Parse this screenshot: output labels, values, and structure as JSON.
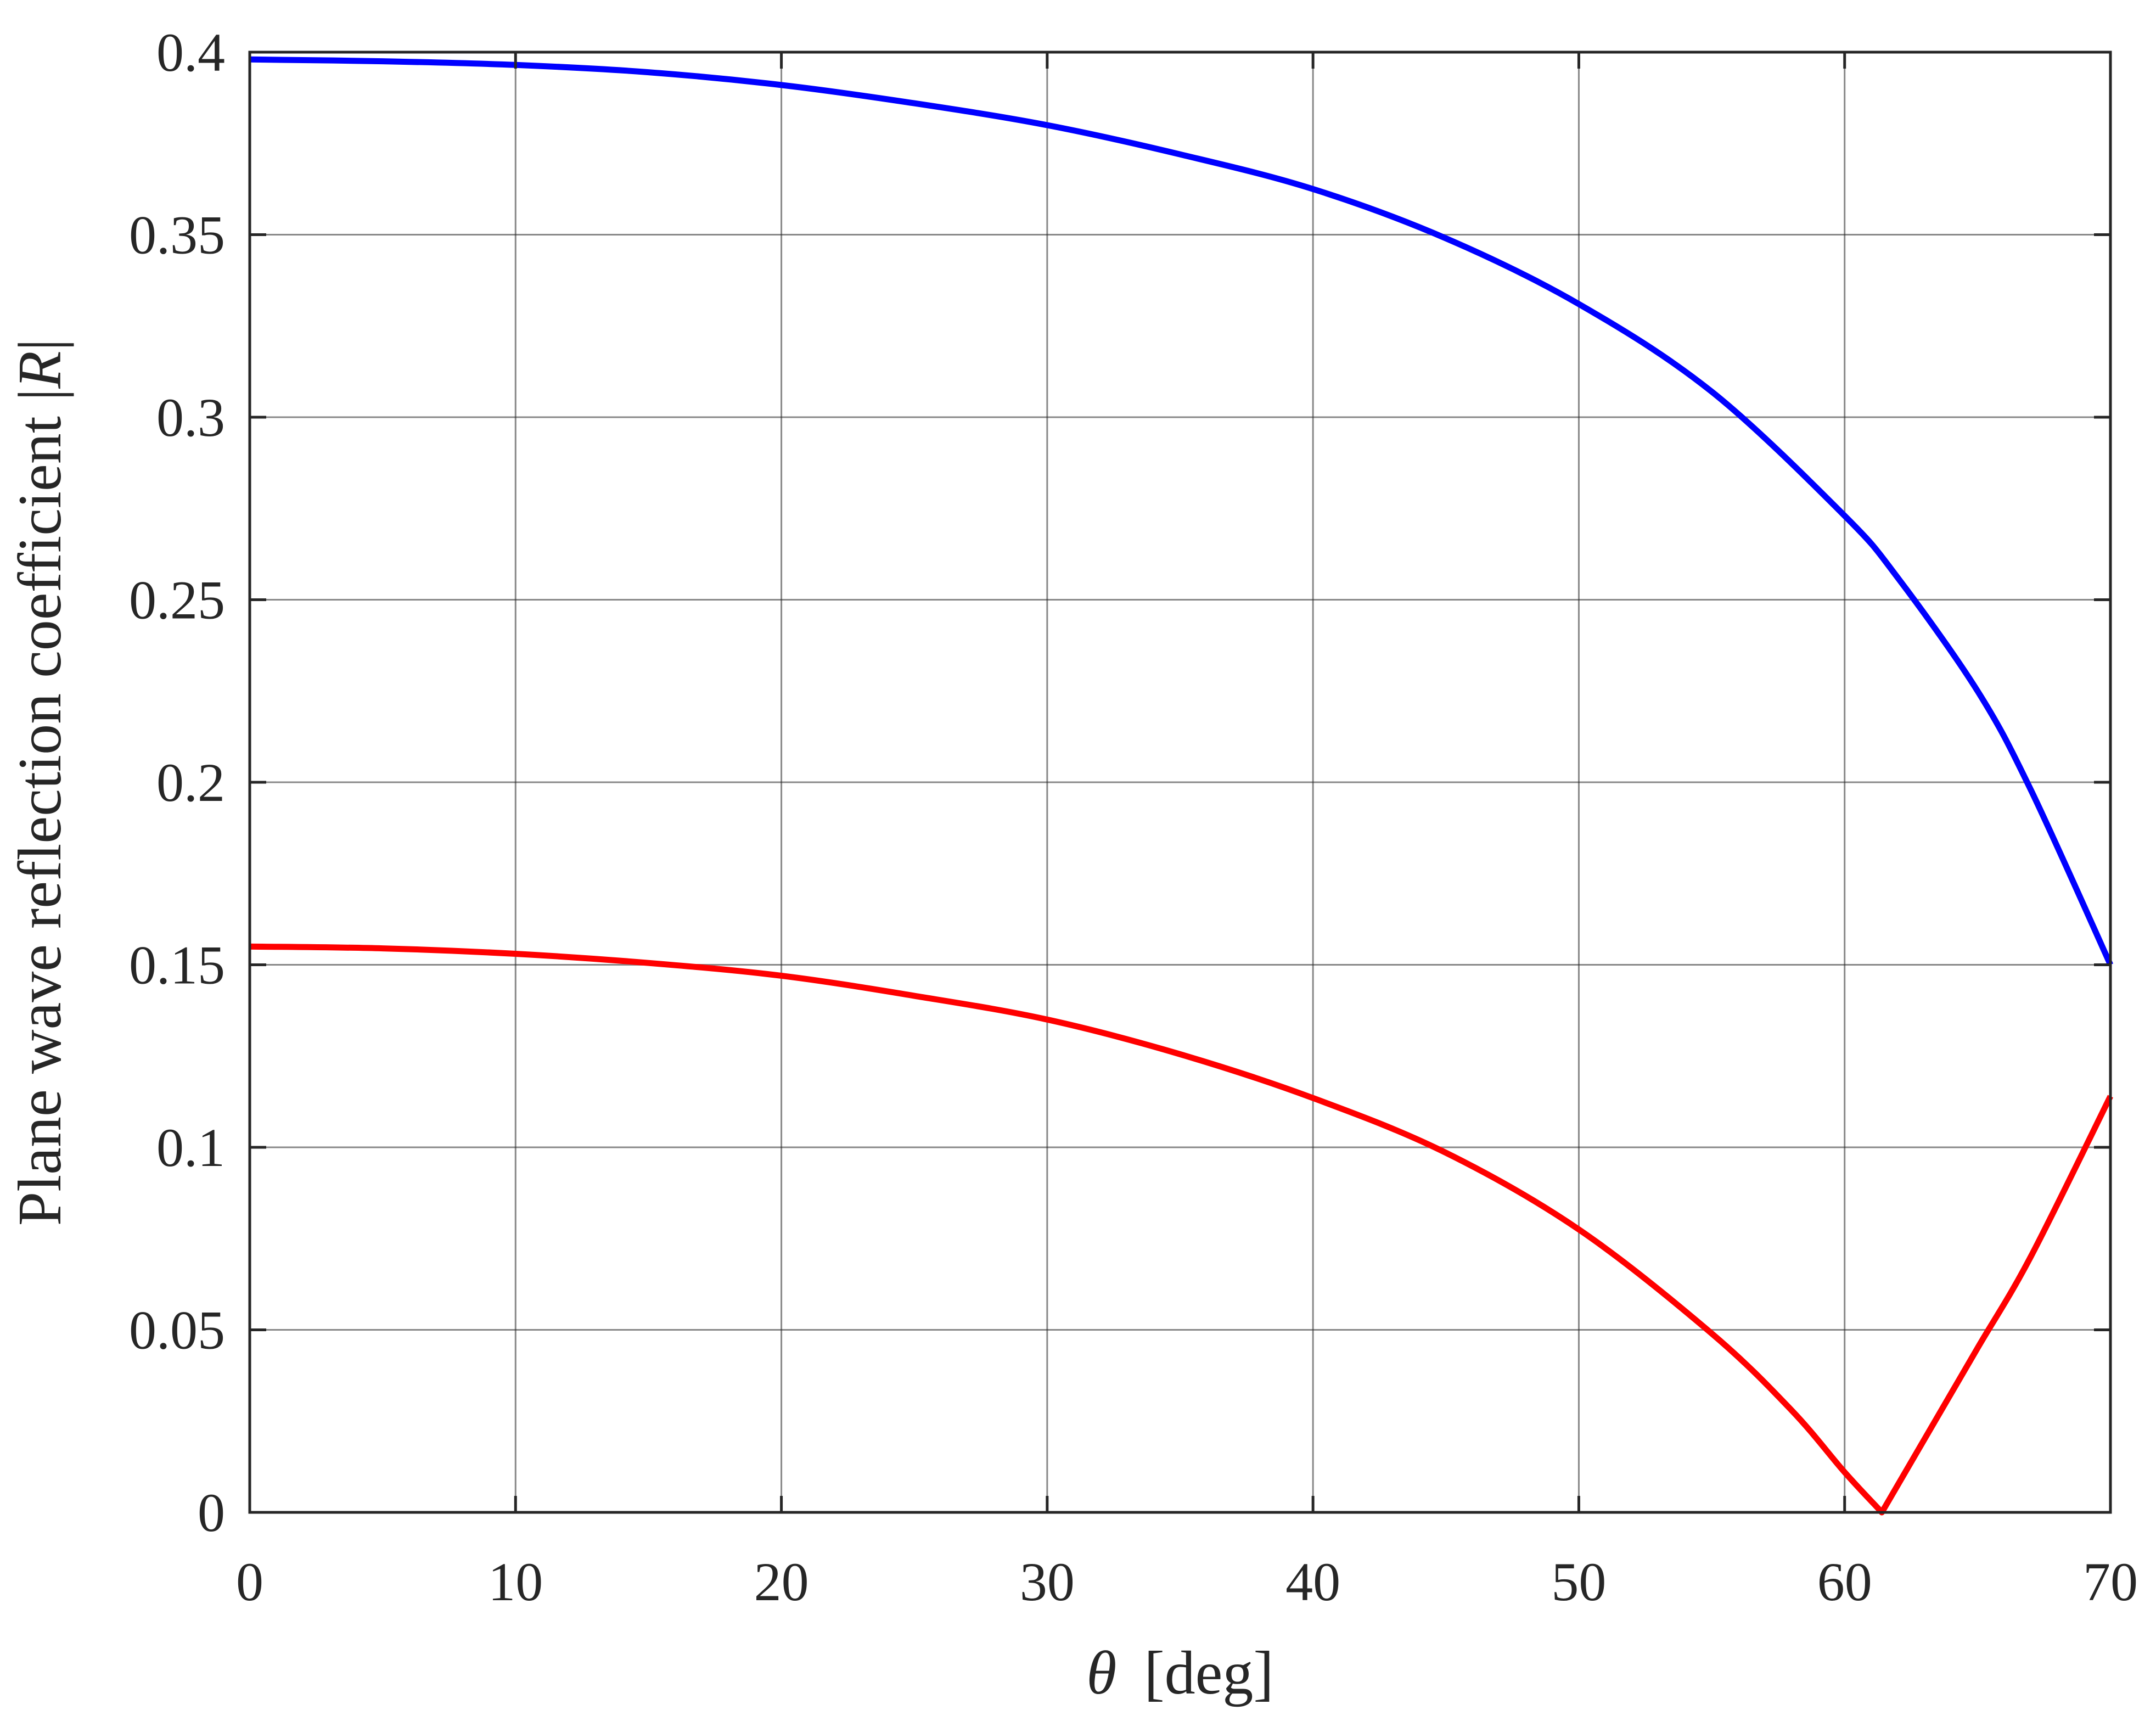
{
  "chart_data": {
    "type": "line",
    "xlabel": {
      "symbol": "θ",
      "unit": "[deg]"
    },
    "ylabel": {
      "text": "Plane wave reflection coefficient |",
      "symbol": "R",
      "close": "|"
    },
    "xlim": [
      0,
      70
    ],
    "ylim": [
      0,
      0.4
    ],
    "xticks": [
      "0",
      "10",
      "20",
      "30",
      "40",
      "50",
      "60",
      "70"
    ],
    "yticks": [
      "0",
      "0.05",
      "0.1",
      "0.15",
      "0.2",
      "0.25",
      "0.3",
      "0.35",
      "0.4"
    ],
    "grid": true,
    "series": [
      {
        "color": "#0000ff",
        "x": [
          0,
          5,
          10,
          15,
          20,
          25,
          30,
          35,
          40,
          45,
          50,
          55,
          60,
          62,
          65,
          67,
          70
        ],
        "y": [
          0.398,
          0.3975,
          0.3965,
          0.3945,
          0.391,
          0.386,
          0.38,
          0.372,
          0.3625,
          0.349,
          0.331,
          0.307,
          0.273,
          0.256,
          0.225,
          0.198,
          0.15
        ]
      },
      {
        "color": "#ff0000",
        "x": [
          0,
          5,
          10,
          15,
          20,
          25,
          30,
          35,
          40,
          45,
          50,
          55,
          58,
          60,
          61.4,
          63,
          65,
          67,
          70
        ],
        "y": [
          0.155,
          0.1545,
          0.153,
          0.1505,
          0.147,
          0.1415,
          0.135,
          0.1255,
          0.1135,
          0.0985,
          0.0775,
          0.049,
          0.028,
          0.011,
          0.0,
          0.02,
          0.045,
          0.07,
          0.114
        ]
      }
    ]
  }
}
